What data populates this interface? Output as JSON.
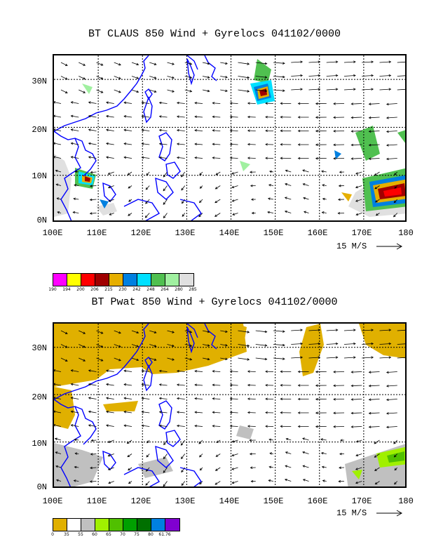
{
  "map1": {
    "title": "BT CLAUS 850 Wind + Gyrelocs 041102/0000",
    "lat_labels": [
      "30N",
      "20N",
      "10N",
      "0N"
    ],
    "lon_labels": [
      "100E",
      "110E",
      "120E",
      "130E",
      "140E",
      "150E",
      "160E",
      "170E",
      "180"
    ],
    "wind_scale_label": "15 M/S",
    "colorbar_colors": [
      "#ff00ff",
      "#ffff00",
      "#ff0000",
      "#a00000",
      "#e6af00",
      "#0080e0",
      "#00e0ff",
      "#50c050",
      "#a0f0a0",
      "#e0e0e0"
    ],
    "colorbar_labels": [
      "190",
      "194",
      "200",
      "206",
      "215",
      "230",
      "242",
      "248",
      "264",
      "280",
      "285"
    ]
  },
  "map2": {
    "title": "BT Pwat 850 Wind + Gyrelocs 041102/0000",
    "lat_labels": [
      "30N",
      "20N",
      "10N",
      "0N"
    ],
    "lon_labels": [
      "100E",
      "110E",
      "120E",
      "130E",
      "140E",
      "150E",
      "160E",
      "170E",
      "180"
    ],
    "wind_scale_label": "15 M/S",
    "colorbar_colors": [
      "#e0b000",
      "#ffffff",
      "#c0c0c0",
      "#a0f000",
      "#50c000",
      "#00a000",
      "#007000",
      "#0080e0",
      "#8000d0"
    ],
    "colorbar_labels": [
      "0",
      "35",
      "55",
      "60",
      "65",
      "70",
      "75",
      "80",
      "61.76"
    ]
  },
  "colors": {
    "coastline": "#0000ff",
    "grid": "#000000"
  }
}
